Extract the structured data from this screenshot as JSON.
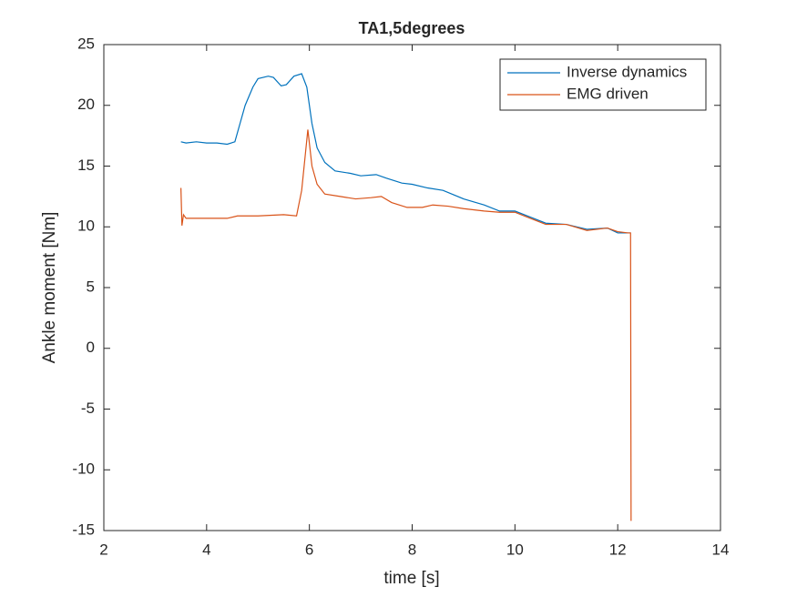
{
  "chart_data": {
    "type": "line",
    "title": "TA1,5degrees",
    "xlabel": "time  [s]",
    "ylabel": "Ankle moment [Nm]",
    "xlim": [
      2,
      14
    ],
    "xticks": [
      2,
      4,
      6,
      8,
      10,
      12,
      14
    ],
    "ylim": [
      -15,
      25
    ],
    "yticks": [
      -15,
      -10,
      -5,
      0,
      5,
      10,
      15,
      20,
      25
    ],
    "legend": "northeast",
    "series": [
      {
        "name": "Inverse dynamics",
        "color": "#0072BD",
        "x": [
          3.5,
          3.6,
          3.8,
          4.0,
          4.2,
          4.4,
          4.55,
          4.65,
          4.75,
          4.9,
          5.0,
          5.2,
          5.3,
          5.45,
          5.55,
          5.7,
          5.85,
          5.95,
          6.05,
          6.15,
          6.3,
          6.5,
          6.8,
          7.0,
          7.3,
          7.5,
          7.8,
          8.0,
          8.3,
          8.6,
          9.0,
          9.4,
          9.7,
          10.0,
          10.3,
          10.6,
          11.0,
          11.4,
          11.8,
          12.0,
          12.25
        ],
        "values": [
          17.0,
          16.9,
          17.0,
          16.9,
          16.9,
          16.8,
          17.0,
          18.5,
          20.0,
          21.5,
          22.2,
          22.4,
          22.3,
          21.6,
          21.7,
          22.4,
          22.6,
          21.5,
          18.5,
          16.5,
          15.3,
          14.6,
          14.4,
          14.2,
          14.3,
          14.0,
          13.6,
          13.5,
          13.2,
          13.0,
          12.3,
          11.8,
          11.3,
          11.3,
          10.8,
          10.3,
          10.2,
          9.8,
          9.9,
          9.5,
          9.5
        ]
      },
      {
        "name": "EMG driven",
        "color": "#D95319",
        "x": [
          3.5,
          3.52,
          3.55,
          3.6,
          4.0,
          4.4,
          4.6,
          5.0,
          5.5,
          5.75,
          5.85,
          5.97,
          6.05,
          6.15,
          6.3,
          6.6,
          6.9,
          7.2,
          7.4,
          7.6,
          7.9,
          8.2,
          8.4,
          8.7,
          9.0,
          9.4,
          9.7,
          10.0,
          10.3,
          10.6,
          11.0,
          11.4,
          11.8,
          12.0,
          12.2,
          12.25,
          12.26
        ],
        "values": [
          13.2,
          10.1,
          11.0,
          10.7,
          10.7,
          10.7,
          10.9,
          10.9,
          11.0,
          10.9,
          13.0,
          18.0,
          15.0,
          13.5,
          12.7,
          12.5,
          12.3,
          12.4,
          12.5,
          12.0,
          11.6,
          11.6,
          11.8,
          11.7,
          11.5,
          11.3,
          11.2,
          11.2,
          10.7,
          10.2,
          10.2,
          9.7,
          9.9,
          9.6,
          9.5,
          9.5,
          -14.2
        ]
      }
    ]
  }
}
